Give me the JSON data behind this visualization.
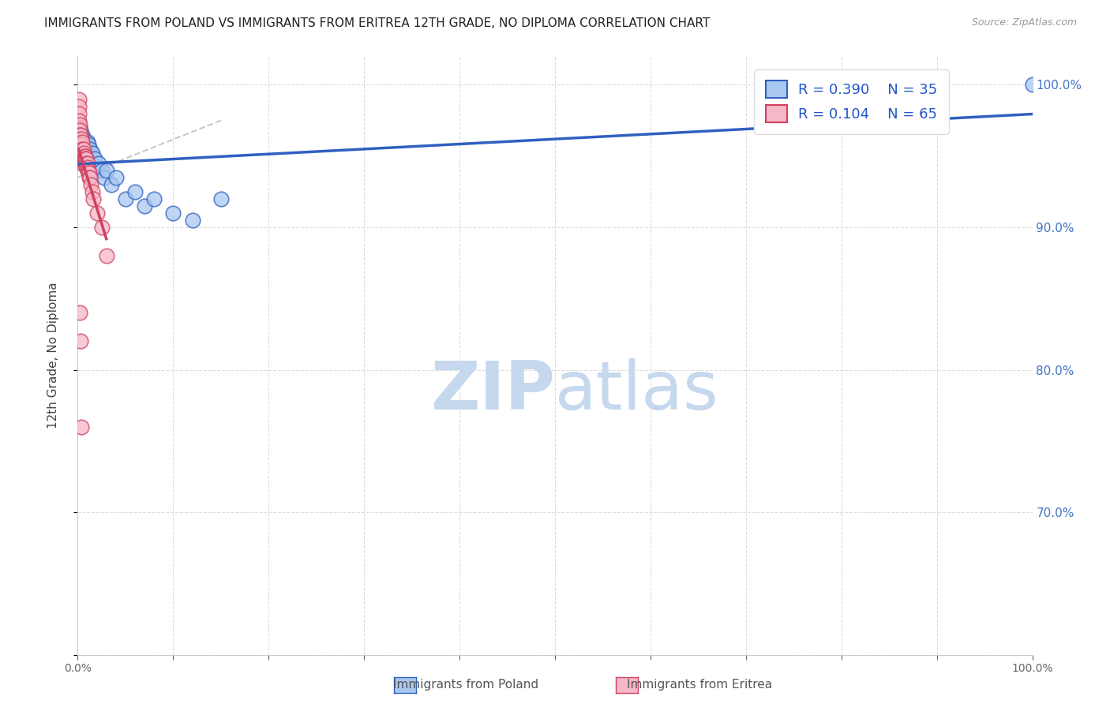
{
  "title": "IMMIGRANTS FROM POLAND VS IMMIGRANTS FROM ERITREA 12TH GRADE, NO DIPLOMA CORRELATION CHART",
  "source": "Source: ZipAtlas.com",
  "ylabel": "12th Grade, No Diploma",
  "right_ytick_labels": [
    "100.0%",
    "90.0%",
    "80.0%",
    "70.0%"
  ],
  "right_ytick_positions": [
    1.0,
    0.9,
    0.8,
    0.7
  ],
  "legend_r1": "R = 0.390",
  "legend_n1": "N = 35",
  "legend_r2": "R = 0.104",
  "legend_n2": "N = 65",
  "color_poland": "#A8C8F0",
  "color_eritrea": "#F5B8C8",
  "color_poland_line": "#3060C0",
  "color_eritrea_line": "#D04060",
  "color_diag_line": "#C8C8C8",
  "background_color": "#FFFFFF",
  "poland_x": [
    0.002,
    0.002,
    0.003,
    0.004,
    0.004,
    0.005,
    0.005,
    0.006,
    0.007,
    0.008,
    0.009,
    0.01,
    0.01,
    0.011,
    0.012,
    0.013,
    0.014,
    0.015,
    0.016,
    0.018,
    0.02,
    0.022,
    0.025,
    0.028,
    0.03,
    0.035,
    0.04,
    0.05,
    0.06,
    0.07,
    0.08,
    0.1,
    0.12,
    0.15,
    1.0
  ],
  "poland_y": [
    0.97,
    0.965,
    0.968,
    0.96,
    0.955,
    0.965,
    0.958,
    0.962,
    0.96,
    0.958,
    0.955,
    0.96,
    0.952,
    0.958,
    0.95,
    0.955,
    0.948,
    0.952,
    0.945,
    0.948,
    0.94,
    0.945,
    0.94,
    0.935,
    0.94,
    0.93,
    0.935,
    0.92,
    0.925,
    0.915,
    0.92,
    0.91,
    0.905,
    0.92,
    1.0
  ],
  "eritrea_x": [
    0.001,
    0.001,
    0.001,
    0.001,
    0.001,
    0.001,
    0.001,
    0.001,
    0.001,
    0.001,
    0.001,
    0.001,
    0.002,
    0.002,
    0.002,
    0.002,
    0.002,
    0.002,
    0.002,
    0.002,
    0.002,
    0.003,
    0.003,
    0.003,
    0.003,
    0.003,
    0.003,
    0.004,
    0.004,
    0.004,
    0.004,
    0.004,
    0.005,
    0.005,
    0.005,
    0.005,
    0.006,
    0.006,
    0.006,
    0.007,
    0.007,
    0.007,
    0.008,
    0.008,
    0.008,
    0.009,
    0.009,
    0.009,
    0.01,
    0.01,
    0.01,
    0.011,
    0.011,
    0.012,
    0.012,
    0.013,
    0.014,
    0.015,
    0.016,
    0.02,
    0.025,
    0.03,
    0.002,
    0.003,
    0.004
  ],
  "eritrea_y": [
    0.99,
    0.985,
    0.98,
    0.975,
    0.97,
    0.968,
    0.965,
    0.962,
    0.96,
    0.958,
    0.955,
    0.952,
    0.972,
    0.968,
    0.965,
    0.962,
    0.958,
    0.955,
    0.952,
    0.95,
    0.948,
    0.965,
    0.96,
    0.958,
    0.955,
    0.95,
    0.948,
    0.962,
    0.958,
    0.955,
    0.95,
    0.948,
    0.96,
    0.955,
    0.95,
    0.945,
    0.955,
    0.952,
    0.948,
    0.95,
    0.948,
    0.945,
    0.95,
    0.948,
    0.945,
    0.948,
    0.945,
    0.942,
    0.945,
    0.942,
    0.94,
    0.94,
    0.938,
    0.938,
    0.935,
    0.935,
    0.93,
    0.925,
    0.92,
    0.91,
    0.9,
    0.88,
    0.84,
    0.82,
    0.76
  ],
  "xlim": [
    0.0,
    1.0
  ],
  "ylim": [
    0.6,
    1.02
  ],
  "title_fontsize": 11,
  "axis_label_fontsize": 11,
  "tick_fontsize": 10,
  "legend_fontsize": 13,
  "watermark_zip": "ZIP",
  "watermark_atlas": "atlas",
  "watermark_color_zip": "#C5D8EE",
  "watermark_color_atlas": "#C5D8EE",
  "watermark_fontsize": 62
}
